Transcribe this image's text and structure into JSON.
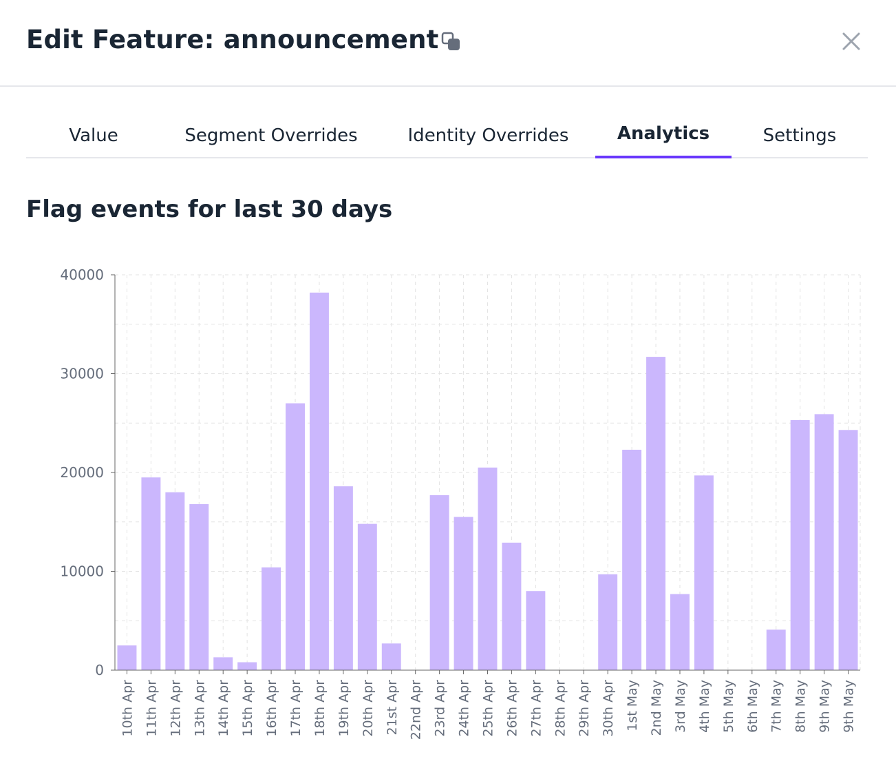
{
  "header": {
    "title": "Edit Feature: announcement",
    "copy_icon": "copy-icon",
    "close_icon": "close-icon"
  },
  "tabs": [
    {
      "label": "Value",
      "active": false
    },
    {
      "label": "Segment Overrides",
      "active": false
    },
    {
      "label": "Identity Overrides",
      "active": false
    },
    {
      "label": "Analytics",
      "active": true
    },
    {
      "label": "Settings",
      "active": false
    }
  ],
  "accent_color": "#6837fc",
  "section_title": "Flag events for last 30 days",
  "chart_data": {
    "type": "bar",
    "title": "",
    "xlabel": "",
    "ylabel": "",
    "ylim": [
      0,
      40000
    ],
    "yticks": [
      0,
      10000,
      20000,
      30000,
      40000
    ],
    "grid": true,
    "bar_color": "#cbb7fd",
    "categories": [
      "10th Apr",
      "11th Apr",
      "12th Apr",
      "13th Apr",
      "14th Apr",
      "15th Apr",
      "16th Apr",
      "17th Apr",
      "18th Apr",
      "19th Apr",
      "20th Apr",
      "21st Apr",
      "22nd Apr",
      "23rd Apr",
      "24th Apr",
      "25th Apr",
      "26th Apr",
      "27th Apr",
      "28th Apr",
      "29th Apr",
      "30th Apr",
      "1st May",
      "2nd May",
      "3rd May",
      "4th May",
      "5th May",
      "6th May",
      "7th May",
      "8th May",
      "9th May",
      "9th May"
    ],
    "values": [
      2500,
      19500,
      18000,
      16800,
      1300,
      800,
      10400,
      27000,
      38200,
      18600,
      14800,
      2700,
      0,
      17700,
      15500,
      20500,
      12900,
      8000,
      0,
      0,
      9700,
      22300,
      31700,
      7700,
      19700,
      0,
      0,
      4100,
      25300,
      25900,
      24300
    ]
  }
}
